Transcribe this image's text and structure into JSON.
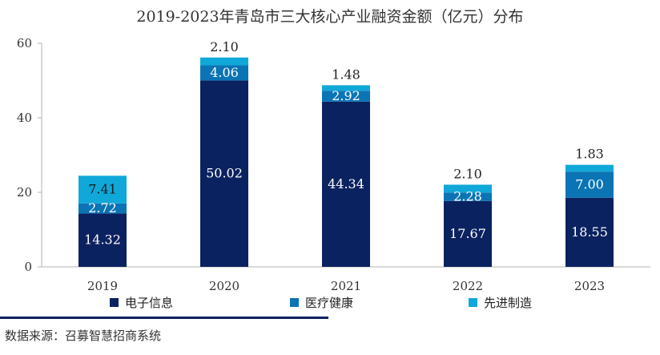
{
  "chart_data": {
    "type": "bar",
    "stacked": true,
    "title": "2019-2023年青岛市三大核心产业融资金额（亿元）分布",
    "categories": [
      "2019",
      "2020",
      "2021",
      "2022",
      "2023"
    ],
    "series": [
      {
        "name": "电子信息",
        "color": "#0b2260",
        "values": [
          14.32,
          50.02,
          44.34,
          17.67,
          18.55
        ],
        "labels": [
          "14.32",
          "50.02",
          "44.34",
          "17.67",
          "18.55"
        ]
      },
      {
        "name": "医疗健康",
        "color": "#0a74b4",
        "values": [
          2.72,
          4.06,
          2.92,
          2.28,
          7.0
        ],
        "labels": [
          "2.72",
          "4.06",
          "2.92",
          "2.28",
          "7.00"
        ]
      },
      {
        "name": "先进制造",
        "color": "#10a8d8",
        "values": [
          7.41,
          2.1,
          1.48,
          2.1,
          1.83
        ],
        "labels": [
          "7.41",
          "2.10",
          "1.48",
          "2.10",
          "1.83"
        ]
      }
    ],
    "yticks": [
      "0",
      "20",
      "40",
      "60"
    ],
    "ylim": [
      0,
      60
    ],
    "grid": false,
    "legend_position": "bottom"
  },
  "source": "数据来源：召募智慧招商系统"
}
